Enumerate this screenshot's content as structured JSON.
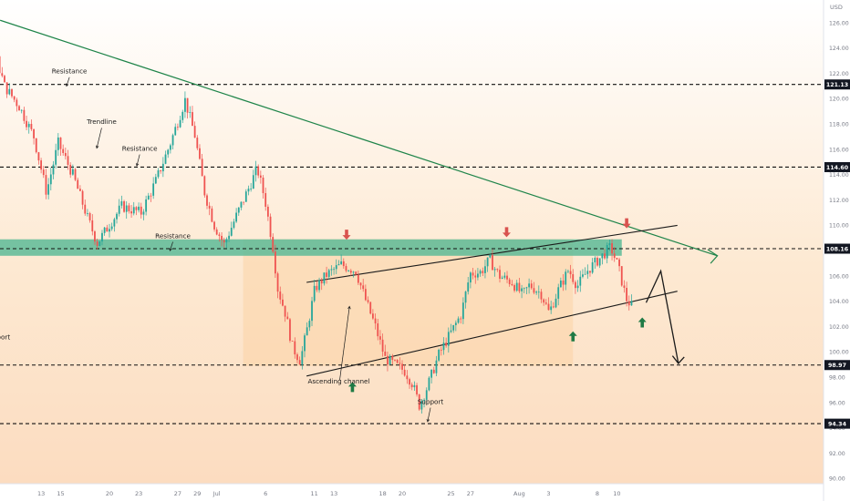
{
  "chart_data": {
    "type": "candlestick",
    "currency": "USD",
    "y_ticks": [
      "126.00",
      "124.00",
      "122.00",
      "120.00",
      "118.00",
      "116.00",
      "114.00",
      "112.00",
      "110.00",
      "108.00",
      "106.00",
      "104.00",
      "102.00",
      "100.00",
      "98.00",
      "96.00",
      "94.00",
      "92.00",
      "90.00"
    ],
    "ylim": [
      89.6,
      127.8
    ],
    "x_ticks": [
      {
        "label": "13",
        "day": 13
      },
      {
        "label": "15",
        "day": 15
      },
      {
        "label": "20",
        "day": 20
      },
      {
        "label": "23",
        "day": 23
      },
      {
        "label": "27",
        "day": 27
      },
      {
        "label": "29",
        "day": 29
      },
      {
        "label": "Jul",
        "day": 31
      },
      {
        "label": "6",
        "day": 36
      },
      {
        "label": "11",
        "day": 41
      },
      {
        "label": "13",
        "day": 43
      },
      {
        "label": "18",
        "day": 48
      },
      {
        "label": "20",
        "day": 50
      },
      {
        "label": "25",
        "day": 55
      },
      {
        "label": "27",
        "day": 57
      },
      {
        "label": "Aug",
        "day": 62
      },
      {
        "label": "3",
        "day": 65
      },
      {
        "label": "8",
        "day": 70
      },
      {
        "label": "10",
        "day": 72
      }
    ],
    "horizontal_levels": [
      {
        "price": 121.13,
        "label": "121.13"
      },
      {
        "price": 114.6,
        "label": "114.60"
      },
      {
        "price": 108.16,
        "label": "108.16"
      },
      {
        "price": 98.97,
        "label": "98.97"
      },
      {
        "price": 94.34,
        "label": "94.34"
      }
    ],
    "resistance_zone": [
      107.6,
      108.9
    ],
    "annotations": [
      {
        "text": "Resistance",
        "day": 15.9,
        "price": 122.0
      },
      {
        "text": "Trendline",
        "day": 19.2,
        "price": 118.0
      },
      {
        "text": "Resistance",
        "day": 23.1,
        "price": 115.9
      },
      {
        "text": "Resistance",
        "day": 26.5,
        "price": 109.0
      },
      {
        "text": "Support",
        "day": 8.5,
        "price": 101.0
      },
      {
        "text": "Ascending channel",
        "day": 43.5,
        "price": 97.5
      },
      {
        "text": "Support",
        "day": 52.9,
        "price": 95.9
      }
    ],
    "colors": {
      "up": "#26a69a",
      "down": "#ef5350",
      "trendline": "#1e8449",
      "zone": "#5dbb98",
      "arrow_up": "#1f7a45",
      "arrow_down": "#d9534f"
    }
  }
}
